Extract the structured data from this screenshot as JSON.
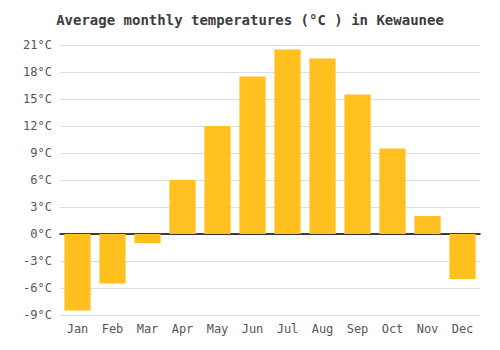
{
  "chart_data": {
    "type": "bar",
    "title": "Average monthly temperatures (°C ) in Kewaunee",
    "categories": [
      "Jan",
      "Feb",
      "Mar",
      "Apr",
      "May",
      "Jun",
      "Jul",
      "Aug",
      "Sep",
      "Oct",
      "Nov",
      "Dec"
    ],
    "values": [
      -8.5,
      -5.5,
      -1.0,
      6.0,
      12.0,
      17.5,
      20.5,
      19.5,
      15.5,
      9.5,
      2.0,
      -5.0
    ],
    "color": "#FFC020",
    "ylim": [
      -9,
      21
    ],
    "yticks": [
      {
        "value": -9,
        "label": "-9°C"
      },
      {
        "value": -6,
        "label": "-6°C"
      },
      {
        "value": -3,
        "label": "-3°C"
      },
      {
        "value": 0,
        "label": "0°C"
      },
      {
        "value": 3,
        "label": "3°C"
      },
      {
        "value": 6,
        "label": "6°C"
      },
      {
        "value": 9,
        "label": "9°C"
      },
      {
        "value": 12,
        "label": "12°C"
      },
      {
        "value": 15,
        "label": "15°C"
      },
      {
        "value": 18,
        "label": "18°C"
      },
      {
        "value": 21,
        "label": "21°C"
      }
    ],
    "grid": true
  }
}
